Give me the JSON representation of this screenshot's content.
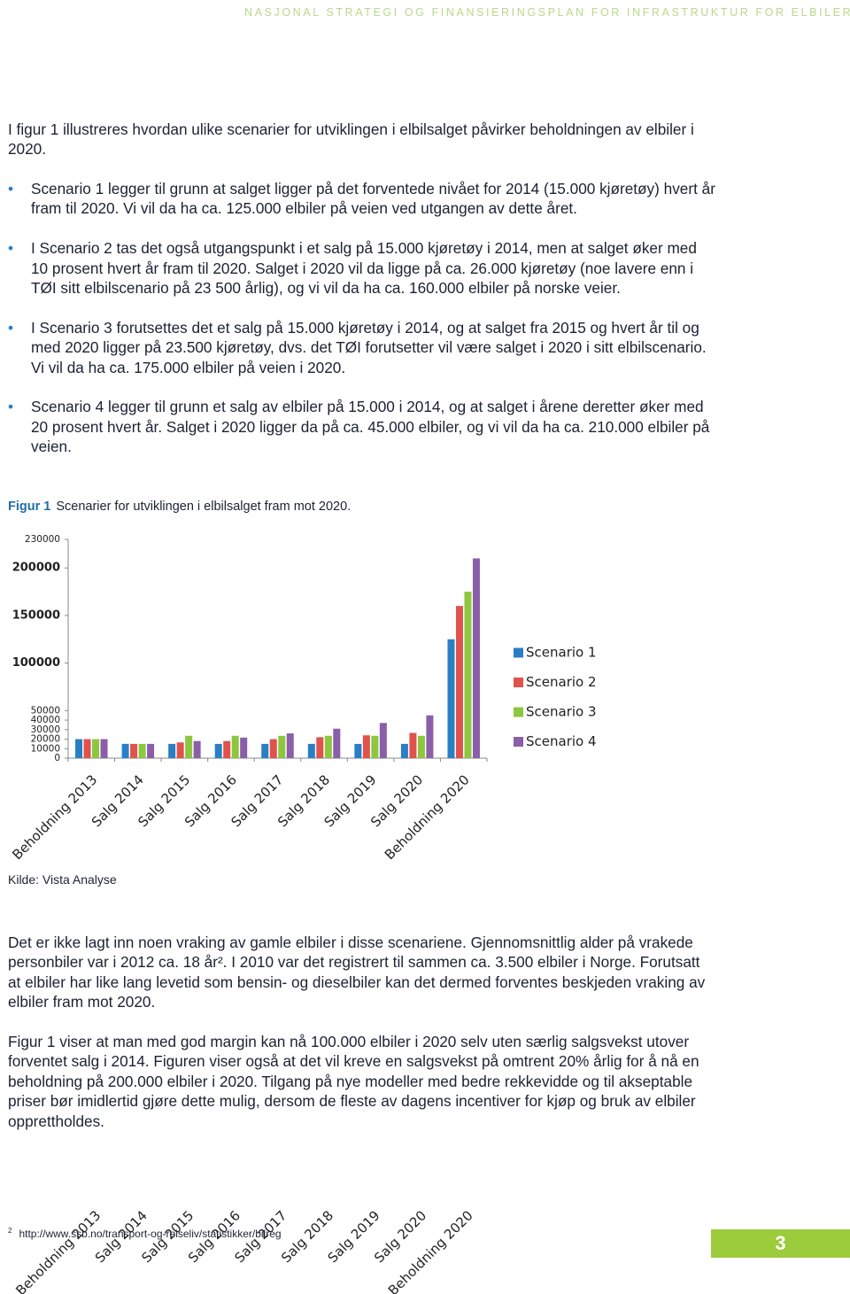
{
  "header": "NASJONAL STRATEGI OG FINANSIERINGSPLAN FOR INFRASTRUKTUR FOR ELBILER",
  "intro": "I figur 1 illustreres hvordan ulike scenarier for utviklingen i elbilsalget påvirker beholdningen av elbiler i 2020.",
  "bullets": [
    "Scenario 1 legger til grunn at salget ligger på det forventede nivået for 2014 (15.000 kjøretøy) hvert år fram til 2020. Vi vil da ha ca. 125.000 elbiler på veien ved utgangen av dette året.",
    "I Scenario 2 tas det også utgangspunkt i et salg på 15.000 kjøretøy i 2014, men at salget øker med 10 prosent hvert år fram til 2020. Salget i 2020 vil da ligge på ca. 26.000 kjøretøy (noe lavere enn i TØI sitt elbilscenario på 23 500 årlig), og vi vil da ha ca. 160.000 elbiler på norske veier.",
    "I Scenario 3 forutsettes det et salg på 15.000 kjøretøy i 2014, og at salget fra 2015 og hvert år til og med 2020 ligger på 23.500 kjøretøy, dvs. det TØI forutsetter vil være salget i 2020 i sitt elbilscenario. Vi vil da ha ca. 175.000 elbiler på veien i 2020.",
    "Scenario 4 legger til grunn et salg av elbiler på 15.000 i 2014, og at salget i årene deretter øker med 20 prosent hvert år. Salget i 2020 ligger da på ca. 45.000 elbiler, og vi vil da ha ca. 210.000 elbiler på veien."
  ],
  "figure_caption": {
    "label": "Figur 1",
    "text": "Scenarier for utviklingen i elbilsalget fram mot 2020."
  },
  "chart_data": {
    "type": "bar",
    "categories": [
      "Beholdning 2013",
      "Salg 2014",
      "Salg 2015",
      "Salg 2016",
      "Salg 2017",
      "Salg 2018",
      "Salg 2019",
      "Salg 2020",
      "Beholdning 2020"
    ],
    "series": [
      {
        "name": "Scenario 1",
        "color": "#2a7fc4",
        "values": [
          20000,
          15000,
          15000,
          15000,
          15000,
          15000,
          15000,
          15000,
          125000
        ]
      },
      {
        "name": "Scenario 2",
        "color": "#e0524c",
        "values": [
          20000,
          15000,
          16500,
          18000,
          20000,
          22000,
          24000,
          26500,
          160000
        ]
      },
      {
        "name": "Scenario 3",
        "color": "#8dc63f",
        "values": [
          20000,
          15000,
          23500,
          23500,
          23500,
          23500,
          23500,
          23500,
          175000
        ]
      },
      {
        "name": "Scenario 4",
        "color": "#8a5ea8",
        "values": [
          20000,
          15000,
          18000,
          21600,
          26000,
          31000,
          37000,
          45000,
          210000
        ]
      }
    ],
    "ylim": [
      0,
      230000
    ],
    "yticks": [
      0,
      10000,
      20000,
      30000,
      40000,
      50000,
      100000,
      150000,
      200000,
      230000
    ],
    "legend": "right"
  },
  "source": "Kilde: Vista Analyse",
  "paragraphs": [
    "Det er ikke lagt inn noen vraking av gamle elbiler i disse scenariene. Gjennomsnittlig alder på vrakede personbiler var i 2012 ca. 18 år². I 2010 var det registrert til sammen ca. 3.500 elbiler i Norge. Forutsatt at elbiler har like lang levetid som bensin- og dieselbiler kan det dermed forventes beskjeden vraking av elbiler fram mot 2020.",
    "Figur 1 viser at man med god margin kan nå 100.000 elbiler i 2020 selv uten særlig salgsvekst utover forventet salg i 2014. Figuren viser også at det vil kreve en salgsvekst på omtrent 20% årlig for å nå en beholdning på 200.000 elbiler i 2020. Tilgang på nye modeller med bedre rekkevidde og til akseptable priser bør imidlertid gjøre dette mulig, dersom de fleste av dagens incentiver for kjøp og bruk av elbiler opprettholdes."
  ],
  "footnote": {
    "number": "2",
    "text": "http://www.ssb.no/transport-og-reiseliv/statistikker/bilreg"
  },
  "page_number": 3
}
